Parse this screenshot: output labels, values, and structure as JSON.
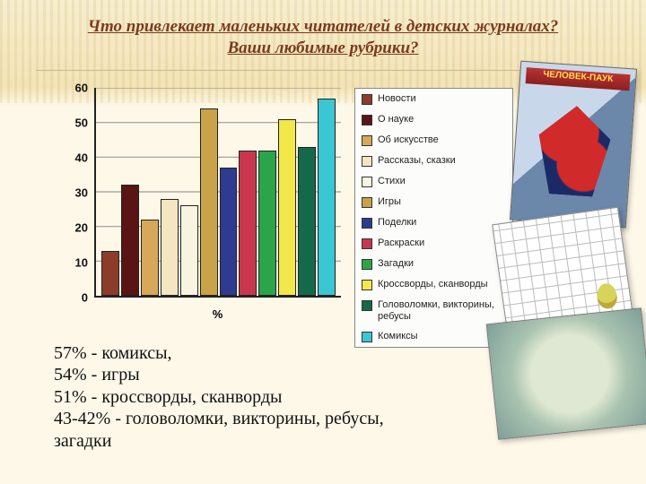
{
  "title_line1": "Что привлекает  маленьких читателей в детских журналах?",
  "title_line2": "Ваши любимые рубрики?",
  "title_color": "#7b3a1f",
  "background_top": "#f3e4b8",
  "background_main": "#fdf8e8",
  "chart": {
    "type": "bar",
    "categories_label": "%",
    "ylim": [
      0,
      60
    ],
    "ytick_step": 10,
    "yticks": [
      0,
      10,
      20,
      30,
      40,
      50,
      60
    ],
    "grid": true,
    "grid_color": "#9a9a9a",
    "axis_color": "#222222",
    "label_font": "bold 13px Arial",
    "bars": [
      {
        "label": "Новости",
        "value": 13,
        "color": "#8b3d2a"
      },
      {
        "label": "О науке",
        "value": 32,
        "color": "#5a1414"
      },
      {
        "label": "Об искусстве",
        "value": 22,
        "color": "#d7a85a"
      },
      {
        "label": "Рассказы, сказки",
        "value": 28,
        "color": "#f4e6c0"
      },
      {
        "label": "Стихи",
        "value": 26,
        "color": "#f7f4e0"
      },
      {
        "label": "Игры",
        "value": 54,
        "color": "#caa24a"
      },
      {
        "label": "Поделки",
        "value": 37,
        "color": "#2e3b8f"
      },
      {
        "label": "Раскраски",
        "value": 42,
        "color": "#c8374e"
      },
      {
        "label": "Загадки",
        "value": 42,
        "color": "#2aa54a"
      },
      {
        "label": "Кроссворды, сканворды",
        "value": 51,
        "color": "#f2e84a"
      },
      {
        "label": "Головоломки, викторины, ребусы",
        "value": 43,
        "color": "#14694a"
      },
      {
        "label": "Комиксы",
        "value": 57,
        "color": "#3ac6d3",
        "highlight": true
      }
    ],
    "bar_border": "#222222",
    "bar_width": 0.82
  },
  "legend": {
    "border": "#888888",
    "background": "#fcfcfa",
    "fontsize": 11,
    "items": [
      {
        "label": "Новости",
        "color": "#8b3d2a"
      },
      {
        "label": "О науке",
        "color": "#5a1414"
      },
      {
        "label": "Об искусстве",
        "color": "#d7a85a"
      },
      {
        "label": "Рассказы, сказки",
        "color": "#f4e6c0"
      },
      {
        "label": "Стихи",
        "color": "#f7f4e0"
      },
      {
        "label": "Игры",
        "color": "#caa24a"
      },
      {
        "label": "Поделки",
        "color": "#2e3b8f"
      },
      {
        "label": "Раскраски",
        "color": "#c8374e"
      },
      {
        "label": "Загадки",
        "color": "#2aa54a"
      },
      {
        "label": "Кроссворды, сканворды",
        "color": "#f2e84a"
      },
      {
        "label": "Головоломки, викторины, ребусы",
        "color": "#14694a"
      },
      {
        "label": "Комиксы",
        "color": "#3ac6d3"
      }
    ]
  },
  "results": [
    "57% - комиксы,",
    "54% - игры",
    "51% - кроссворды, сканворды",
    "43-42% - головоломки, викторины, ребусы,",
    "загадки"
  ],
  "results_fontsize": 20,
  "images": {
    "comic_title": "ЧЕЛОВЕК-ПАУК"
  }
}
